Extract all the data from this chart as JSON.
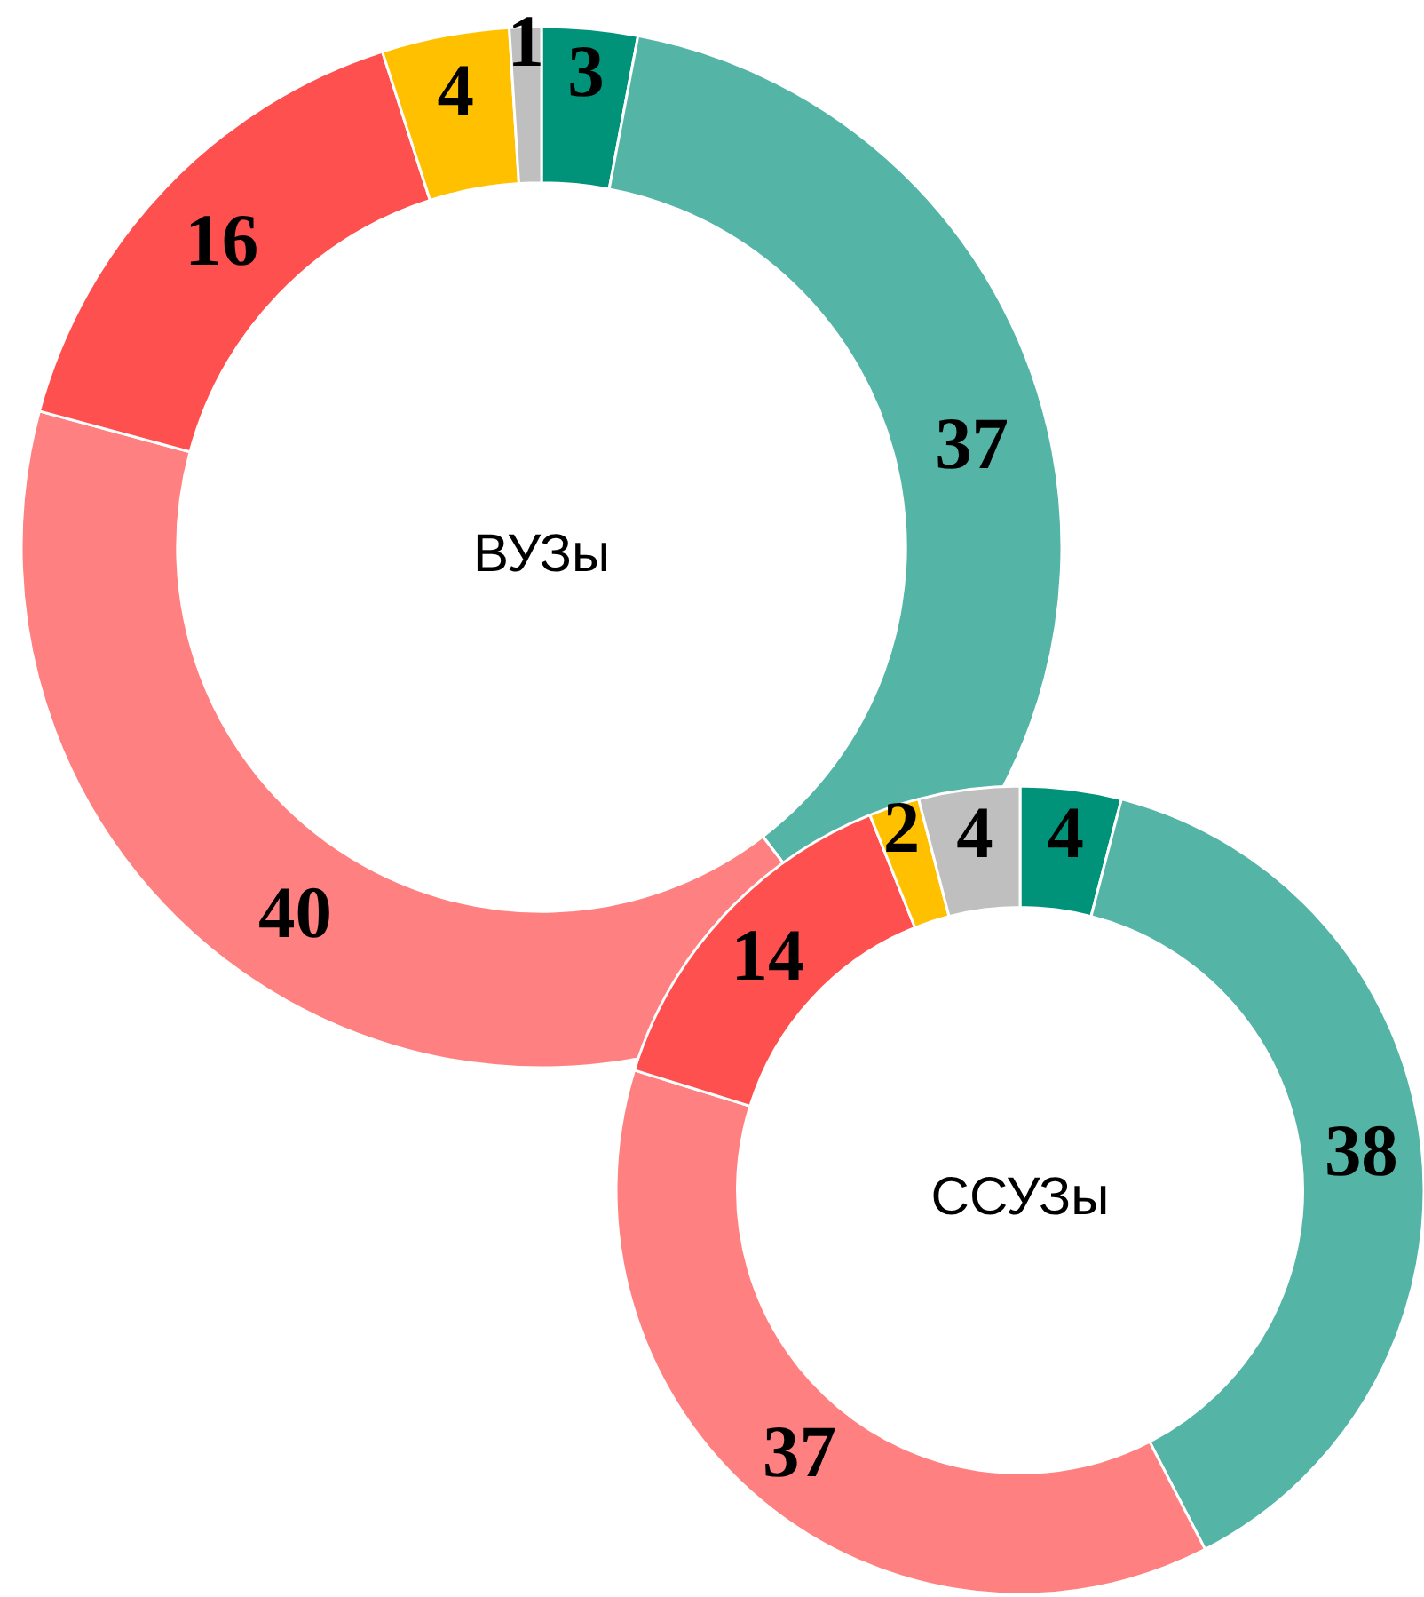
{
  "chart_data": [
    {
      "type": "donut",
      "title": "ВУЗы",
      "categories": [
        null,
        null,
        null,
        null,
        null,
        null
      ],
      "values": [
        3,
        37,
        40,
        16,
        4,
        1
      ],
      "colors": [
        "#00937a",
        "#54b5a7",
        "#ff8080",
        "#ff5050",
        "#ffc000",
        "#bfbfbf"
      ],
      "data_labels": true
    },
    {
      "type": "donut",
      "title": "ССУЗы",
      "categories": [
        null,
        null,
        null,
        null,
        null,
        null
      ],
      "values": [
        4,
        38,
        37,
        14,
        2,
        4
      ],
      "colors": [
        "#00937a",
        "#54b5a7",
        "#ff8080",
        "#ff5050",
        "#ffc000",
        "#bfbfbf"
      ],
      "data_labels": true
    }
  ]
}
